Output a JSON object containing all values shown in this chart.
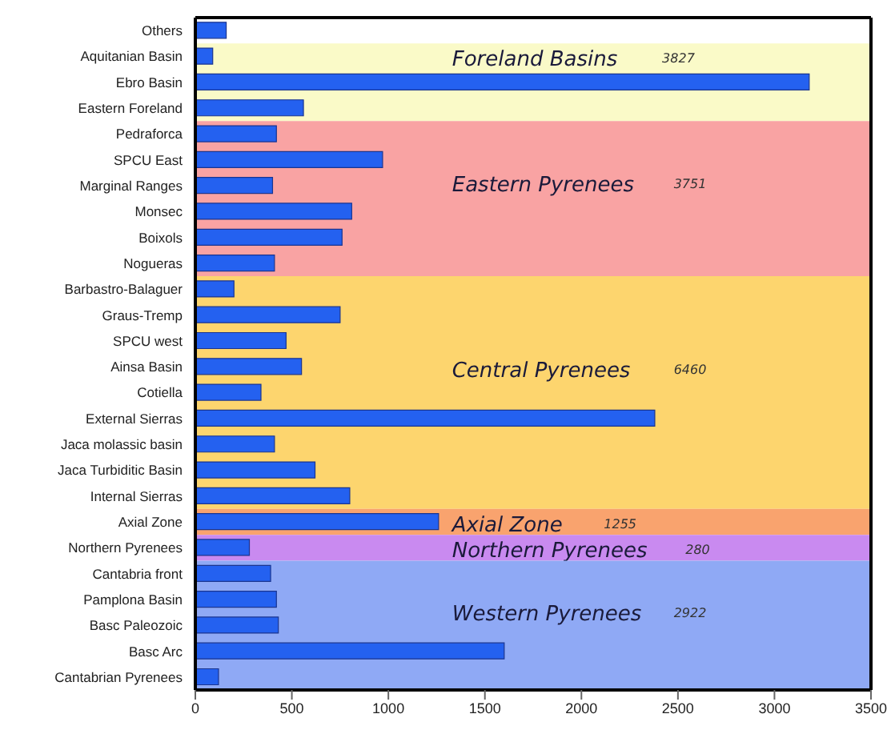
{
  "chart_data": {
    "type": "bar",
    "orientation": "horizontal",
    "categories": [
      "Others",
      "Aquitanian Basin",
      "Ebro Basin",
      "Eastern Foreland",
      "Pedraforca",
      "SPCU East",
      "Marginal Ranges",
      "Monsec",
      "Boixols",
      "Nogueras",
      "Barbastro-Balaguer",
      "Graus-Tremp",
      "SPCU west",
      "Ainsa Basin",
      "Cotiella",
      "External Sierras",
      "Jaca molassic basin",
      "Jaca Turbiditic Basin",
      "Internal Sierras",
      "Axial Zone",
      "Northern Pyrenees",
      "Cantabria front",
      "Pamplona Basin",
      "Basc Paleozoic",
      "Basc Arc",
      "Cantabrian Pyrenees"
    ],
    "values": [
      160,
      90,
      3180,
      560,
      420,
      970,
      400,
      810,
      760,
      410,
      200,
      750,
      470,
      550,
      340,
      2380,
      410,
      620,
      800,
      1260,
      280,
      390,
      420,
      430,
      1600,
      120
    ],
    "color": "#2461f0",
    "xlim": [
      0,
      3500
    ],
    "xticks": [
      0,
      500,
      1000,
      1500,
      2000,
      2500,
      3000,
      3500
    ],
    "bands": [
      {
        "axis": "y",
        "from": "Aquitanian Basin",
        "to": "Eastern Foreland",
        "label": "Foreland Basins",
        "color": "#fafac8"
      },
      {
        "axis": "y",
        "from": "Pedraforca",
        "to": "Nogueras",
        "label": "Eastern Pyrenees",
        "color": "#f9a3a3"
      },
      {
        "axis": "y",
        "from": "Barbastro-Balaguer",
        "to": "Internal Sierras",
        "label": "Central Pyrenees",
        "color": "#fdd56e"
      },
      {
        "axis": "y",
        "from": "Axial Zone",
        "to": "Axial Zone",
        "label": "Axial Zone",
        "color": "#f9a36e"
      },
      {
        "axis": "y",
        "from": "Northern Pyrenees",
        "to": "Northern Pyrenees",
        "label": "Northern Pyrenees",
        "color": "#c98af0"
      },
      {
        "axis": "y",
        "from": "Cantabria front",
        "to": "Cantabrian Pyrenees",
        "label": "Western Pyrenees",
        "color": "#8fa9f5"
      }
    ],
    "annotations": [
      "3827",
      "3751",
      "6460",
      "1255",
      "280",
      "2922"
    ]
  }
}
